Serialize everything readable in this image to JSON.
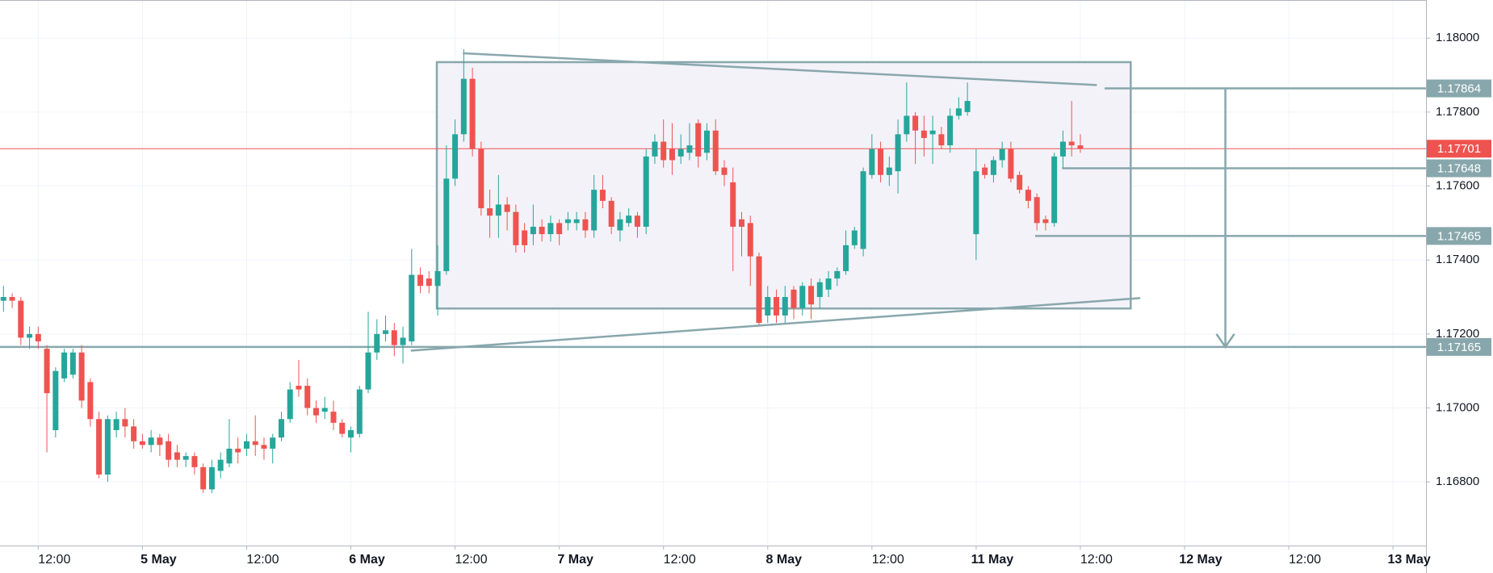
{
  "chart_data": {
    "type": "candlestick",
    "up_color": "#26a69a",
    "down_color": "#ef5350",
    "grid": true,
    "xlim": [
      -16.4,
      147.8
    ],
    "ylim": [
      1.16628,
      1.18103
    ],
    "xticks": [
      {
        "value": -12,
        "label": "12:00"
      },
      {
        "value": 0,
        "label": "5 May"
      },
      {
        "value": 12,
        "label": "12:00"
      },
      {
        "value": 24,
        "label": "6 May"
      },
      {
        "value": 36,
        "label": "12:00"
      },
      {
        "value": 48,
        "label": "7 May"
      },
      {
        "value": 60,
        "label": "12:00"
      },
      {
        "value": 72,
        "label": "8 May"
      },
      {
        "value": 84,
        "label": "12:00"
      },
      {
        "value": 96,
        "label": "11 May"
      },
      {
        "value": 108,
        "label": "12:00"
      },
      {
        "value": 120,
        "label": "12 May"
      },
      {
        "value": 132,
        "label": "12:00"
      },
      {
        "value": 144,
        "label": "13 May"
      }
    ],
    "yticks": [
      {
        "value": 1.168,
        "label": "1.16800"
      },
      {
        "value": 1.17,
        "label": "1.17000"
      },
      {
        "value": 1.172,
        "label": "1.17200"
      },
      {
        "value": 1.174,
        "label": "1.17400"
      },
      {
        "value": 1.176,
        "label": "1.17600"
      },
      {
        "value": 1.178,
        "label": "1.17800"
      },
      {
        "value": 1.18,
        "label": "1.18000"
      }
    ],
    "x": [
      -16,
      -15,
      -14,
      -13,
      -12,
      -11,
      -10,
      -9,
      -8,
      -7,
      -6,
      -5,
      -4,
      -3,
      -2,
      -1,
      0,
      1,
      2,
      3,
      4,
      5,
      6,
      7,
      8,
      9,
      10,
      11,
      12,
      13,
      14,
      15,
      16,
      17,
      18,
      19,
      20,
      21,
      22,
      23,
      24,
      25,
      26,
      27,
      28,
      29,
      30,
      31,
      32,
      33,
      34,
      35,
      36,
      37,
      38,
      39,
      40,
      41,
      42,
      43,
      44,
      45,
      46,
      47,
      48,
      49,
      50,
      51,
      52,
      53,
      54,
      55,
      56,
      57,
      58,
      59,
      60,
      61,
      62,
      63,
      64,
      65,
      66,
      67,
      68,
      69,
      70,
      71,
      72,
      73,
      74,
      75,
      76,
      77,
      78,
      79,
      80,
      81,
      82,
      83,
      84,
      85,
      86,
      87,
      88,
      89,
      90,
      91,
      92,
      93,
      94,
      95,
      96,
      97,
      98,
      99,
      100,
      101,
      102,
      103,
      104,
      105,
      106,
      107,
      108
    ],
    "open": [
      1.1729,
      1.173,
      1.1729,
      1.1719,
      1.172,
      1.1716,
      1.1694,
      1.1708,
      1.1709,
      1.1715,
      1.1707,
      1.1697,
      1.1682,
      1.1694,
      1.1697,
      1.1695,
      1.1691,
      1.169,
      1.1692,
      1.1691,
      1.1688,
      1.1686,
      1.1687,
      1.1684,
      1.1678,
      1.1683,
      1.1685,
      1.1689,
      1.1689,
      1.1691,
      1.169,
      1.1689,
      1.1692,
      1.1697,
      1.1706,
      1.1706,
      1.17,
      1.1699,
      1.1699,
      1.1696,
      1.1692,
      1.1693,
      1.1705,
      1.1715,
      1.172,
      1.1721,
      1.1717,
      1.1718,
      1.1736,
      1.1735,
      1.1733,
      1.1737,
      1.1762,
      1.1774,
      1.1789,
      1.177,
      1.1754,
      1.1752,
      1.1755,
      1.1753,
      1.1748,
      1.1747,
      1.1749,
      1.1747,
      1.175,
      1.175,
      1.175,
      1.1751,
      1.1748,
      1.1759,
      1.1756,
      1.1748,
      1.175,
      1.1752,
      1.1749,
      1.1768,
      1.1772,
      1.177,
      1.1768,
      1.1769,
      1.1777,
      1.1769,
      1.1775,
      1.1765,
      1.1761,
      1.1751,
      1.175,
      1.1741,
      1.1725,
      1.173,
      1.1725,
      1.1732,
      1.1727,
      1.1733,
      1.173,
      1.1732,
      1.1735,
      1.1737,
      1.1744,
      1.1743,
      1.1763,
      1.177,
      1.1763,
      1.1764,
      1.1774,
      1.1779,
      1.1775,
      1.1774,
      1.1774,
      1.1771,
      1.1779,
      1.178,
      1.1747,
      1.1765,
      1.1763,
      1.1767,
      1.177,
      1.1763,
      1.1759,
      1.1757,
      1.1751,
      1.175,
      1.1768,
      1.1772,
      1.1771
    ],
    "high": [
      1.1733,
      1.1731,
      1.173,
      1.1722,
      1.1722,
      1.1717,
      1.1711,
      1.1716,
      1.1716,
      1.1717,
      1.1708,
      1.1699,
      1.1698,
      1.1699,
      1.17,
      1.1697,
      1.1693,
      1.1694,
      1.1693,
      1.1693,
      1.169,
      1.1688,
      1.1688,
      1.1685,
      1.1686,
      1.1688,
      1.1697,
      1.1692,
      1.1693,
      1.1698,
      1.1692,
      1.1693,
      1.1699,
      1.1707,
      1.1713,
      1.1708,
      1.1702,
      1.1703,
      1.1702,
      1.1697,
      1.1695,
      1.1706,
      1.1726,
      1.1724,
      1.1725,
      1.1723,
      1.1722,
      1.1743,
      1.1738,
      1.1737,
      1.1744,
      1.1771,
      1.1778,
      1.1797,
      1.1792,
      1.1772,
      1.1759,
      1.1763,
      1.1757,
      1.1755,
      1.175,
      1.1755,
      1.1751,
      1.1752,
      1.1751,
      1.1753,
      1.1753,
      1.1753,
      1.1763,
      1.1763,
      1.1757,
      1.1753,
      1.1754,
      1.1753,
      1.177,
      1.1774,
      1.1778,
      1.1777,
      1.1774,
      1.1777,
      1.1778,
      1.1777,
      1.1778,
      1.1767,
      1.1765,
      1.1753,
      1.1752,
      1.1742,
      1.1733,
      1.1732,
      1.1733,
      1.1733,
      1.1734,
      1.1735,
      1.1735,
      1.1737,
      1.1738,
      1.1748,
      1.1749,
      1.1765,
      1.1774,
      1.1772,
      1.1768,
      1.1778,
      1.1788,
      1.178,
      1.1779,
      1.1779,
      1.1776,
      1.1781,
      1.1784,
      1.1788,
      1.177,
      1.1766,
      1.1768,
      1.1772,
      1.1772,
      1.1764,
      1.176,
      1.1758,
      1.1752,
      1.1769,
      1.1775,
      1.1783,
      1.1774
    ],
    "low": [
      1.1726,
      1.1727,
      1.1717,
      1.1716,
      1.1716,
      1.1688,
      1.1692,
      1.1707,
      1.1708,
      1.17,
      1.1695,
      1.1681,
      1.168,
      1.1692,
      1.1692,
      1.1689,
      1.1689,
      1.1688,
      1.1687,
      1.1684,
      1.1684,
      1.1684,
      1.1682,
      1.1677,
      1.1677,
      1.1681,
      1.1684,
      1.1685,
      1.1687,
      1.1687,
      1.1686,
      1.1685,
      1.1691,
      1.1696,
      1.1703,
      1.1698,
      1.1696,
      1.1697,
      1.1694,
      1.1692,
      1.1688,
      1.1692,
      1.1704,
      1.1713,
      1.1718,
      1.1714,
      1.1712,
      1.1717,
      1.1731,
      1.1731,
      1.1725,
      1.1736,
      1.176,
      1.1772,
      1.1768,
      1.1752,
      1.1746,
      1.1746,
      1.1748,
      1.1742,
      1.1742,
      1.1744,
      1.1745,
      1.1745,
      1.1744,
      1.1748,
      1.1748,
      1.1746,
      1.1746,
      1.1754,
      1.1747,
      1.1745,
      1.1749,
      1.1746,
      1.1747,
      1.1766,
      1.1765,
      1.1763,
      1.1766,
      1.1767,
      1.1765,
      1.1767,
      1.1763,
      1.176,
      1.1737,
      1.1741,
      1.1733,
      1.1722,
      1.1723,
      1.1723,
      1.1723,
      1.1724,
      1.1725,
      1.1724,
      1.1727,
      1.173,
      1.1733,
      1.1736,
      1.1743,
      1.1741,
      1.1762,
      1.1761,
      1.176,
      1.1758,
      1.1772,
      1.1766,
      1.1768,
      1.1766,
      1.177,
      1.1769,
      1.1778,
      1.1779,
      1.174,
      1.1762,
      1.1761,
      1.1765,
      1.1761,
      1.1758,
      1.1754,
      1.1748,
      1.1748,
      1.1749,
      1.1765,
      1.1768,
      1.1769
    ],
    "close": [
      1.173,
      1.1729,
      1.1719,
      1.172,
      1.1718,
      1.1704,
      1.171,
      1.1715,
      1.1715,
      1.1702,
      1.1697,
      1.1682,
      1.1697,
      1.1697,
      1.1695,
      1.1691,
      1.169,
      1.1692,
      1.169,
      1.1686,
      1.1686,
      1.1687,
      1.1684,
      1.1678,
      1.1684,
      1.1686,
      1.1689,
      1.1688,
      1.1691,
      1.169,
      1.1689,
      1.1692,
      1.1697,
      1.1705,
      1.1705,
      1.17,
      1.1698,
      1.17,
      1.1696,
      1.1693,
      1.1694,
      1.1705,
      1.1715,
      1.172,
      1.1721,
      1.1717,
      1.1719,
      1.1736,
      1.1733,
      1.1733,
      1.1737,
      1.1762,
      1.1774,
      1.1789,
      1.177,
      1.1754,
      1.1752,
      1.1755,
      1.1753,
      1.1744,
      1.1744,
      1.1749,
      1.1747,
      1.175,
      1.1747,
      1.1751,
      1.1751,
      1.1748,
      1.1759,
      1.1756,
      1.1749,
      1.1751,
      1.1752,
      1.1749,
      1.1768,
      1.1772,
      1.1767,
      1.1767,
      1.177,
      1.1771,
      1.1768,
      1.1775,
      1.1764,
      1.1763,
      1.1749,
      1.1749,
      1.1741,
      1.1723,
      1.173,
      1.1725,
      1.173,
      1.1727,
      1.1733,
      1.1728,
      1.1734,
      1.1735,
      1.1737,
      1.1744,
      1.1748,
      1.1764,
      1.177,
      1.1763,
      1.1765,
      1.1774,
      1.1779,
      1.1775,
      1.1773,
      1.1775,
      1.1771,
      1.1779,
      1.1781,
      1.1783,
      1.1764,
      1.1763,
      1.1767,
      1.177,
      1.1762,
      1.1759,
      1.1756,
      1.175,
      1.175,
      1.1768,
      1.1772,
      1.1771,
      1.17701
    ],
    "drawing_color": "#88a7ac",
    "rectangle": {
      "x": [
        33.9,
        113.8
      ],
      "y": [
        1.17269,
        1.17935
      ],
      "fill": "#f3f2f9"
    },
    "trend_lines": [
      {
        "x": [
          36.9,
          109.9
        ],
        "y": [
          1.17959,
          1.17873
        ]
      },
      {
        "x": [
          30.9,
          114.9
        ],
        "y": [
          1.17155,
          1.17297
        ]
      }
    ],
    "arrow": {
      "x": 124.7,
      "y": [
        1.17864,
        1.17165
      ]
    },
    "price_lines": [
      {
        "value": 1.17864,
        "start": 110.8,
        "color": "#88a7ac"
      },
      {
        "value": 1.17701,
        "color": "#ef5350"
      },
      {
        "value": 1.17648,
        "start": 105.9,
        "color": "#88a7ac"
      },
      {
        "value": 1.17465,
        "start": 102.8,
        "color": "#88a7ac"
      },
      {
        "value": 1.17165,
        "color": "#88a7ac"
      }
    ]
  }
}
